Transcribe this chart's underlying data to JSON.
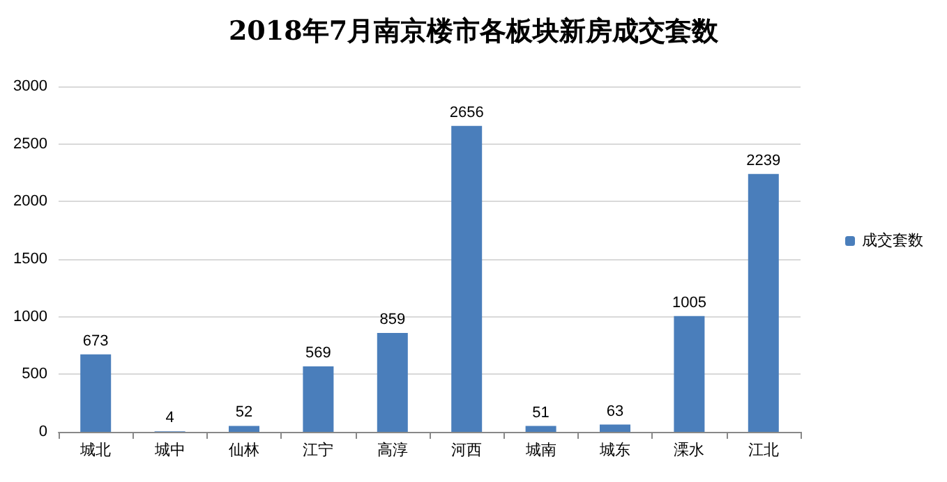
{
  "chart_data": {
    "type": "bar",
    "title": "2018年7月南京楼市各板块新房成交套数",
    "categories": [
      "城北",
      "城中",
      "仙林",
      "江宁",
      "高淳",
      "河西",
      "城南",
      "城东",
      "溧水",
      "江北"
    ],
    "series": [
      {
        "name": "成交套数",
        "color": "#4a7ebb",
        "values": [
          673,
          4,
          52,
          569,
          859,
          2656,
          51,
          63,
          1005,
          2239
        ]
      }
    ],
    "ylim": [
      0,
      3000
    ],
    "yticks": [
      0,
      500,
      1000,
      1500,
      2000,
      2500,
      3000
    ],
    "grid": "y",
    "legend": "right",
    "data_labels": true
  }
}
